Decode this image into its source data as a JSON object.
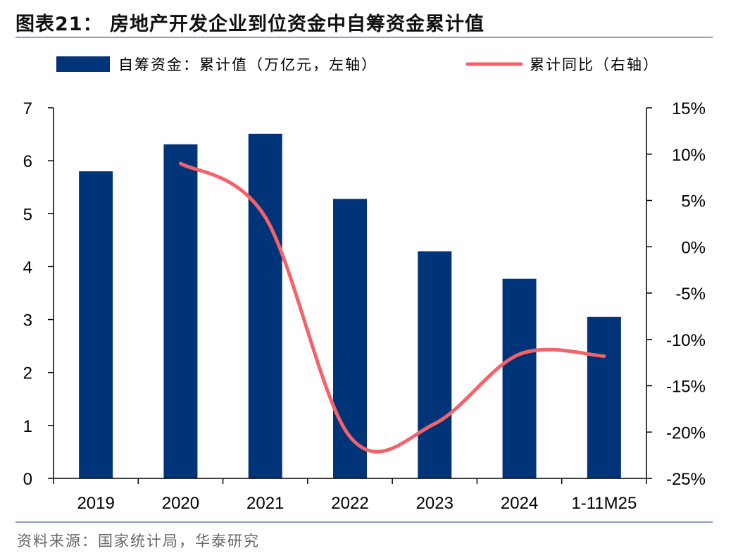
{
  "title": "图表21：  房地产开发企业到位资金中自筹资金累计值",
  "source": "资料来源：国家统计局，华泰研究",
  "chart_data": {
    "type": "bar+line",
    "categories": [
      "2019",
      "2020",
      "2021",
      "2022",
      "2023",
      "2024",
      "1-11M25"
    ],
    "series": [
      {
        "name": "自筹资金：累计值（万亿元，左轴）",
        "type": "bar",
        "axis": "left",
        "color": "#003478",
        "values": [
          5.8,
          6.31,
          6.51,
          5.28,
          4.29,
          3.77,
          3.05
        ]
      },
      {
        "name": "累计同比（右轴）",
        "type": "line",
        "axis": "right",
        "color": "#f4626a",
        "values": [
          null,
          9.0,
          3.2,
          -20.5,
          -19.1,
          -11.6,
          -11.8
        ]
      }
    ],
    "y_left": {
      "min": 0,
      "max": 7,
      "ticks": [
        "0",
        "1",
        "2",
        "3",
        "4",
        "5",
        "6",
        "7"
      ]
    },
    "y_right": {
      "min": -25,
      "max": 15,
      "ticks": [
        "-25%",
        "-20%",
        "-15%",
        "-10%",
        "-5%",
        "0%",
        "5%",
        "10%",
        "15%"
      ]
    },
    "legend_position": "top",
    "grid": false
  }
}
